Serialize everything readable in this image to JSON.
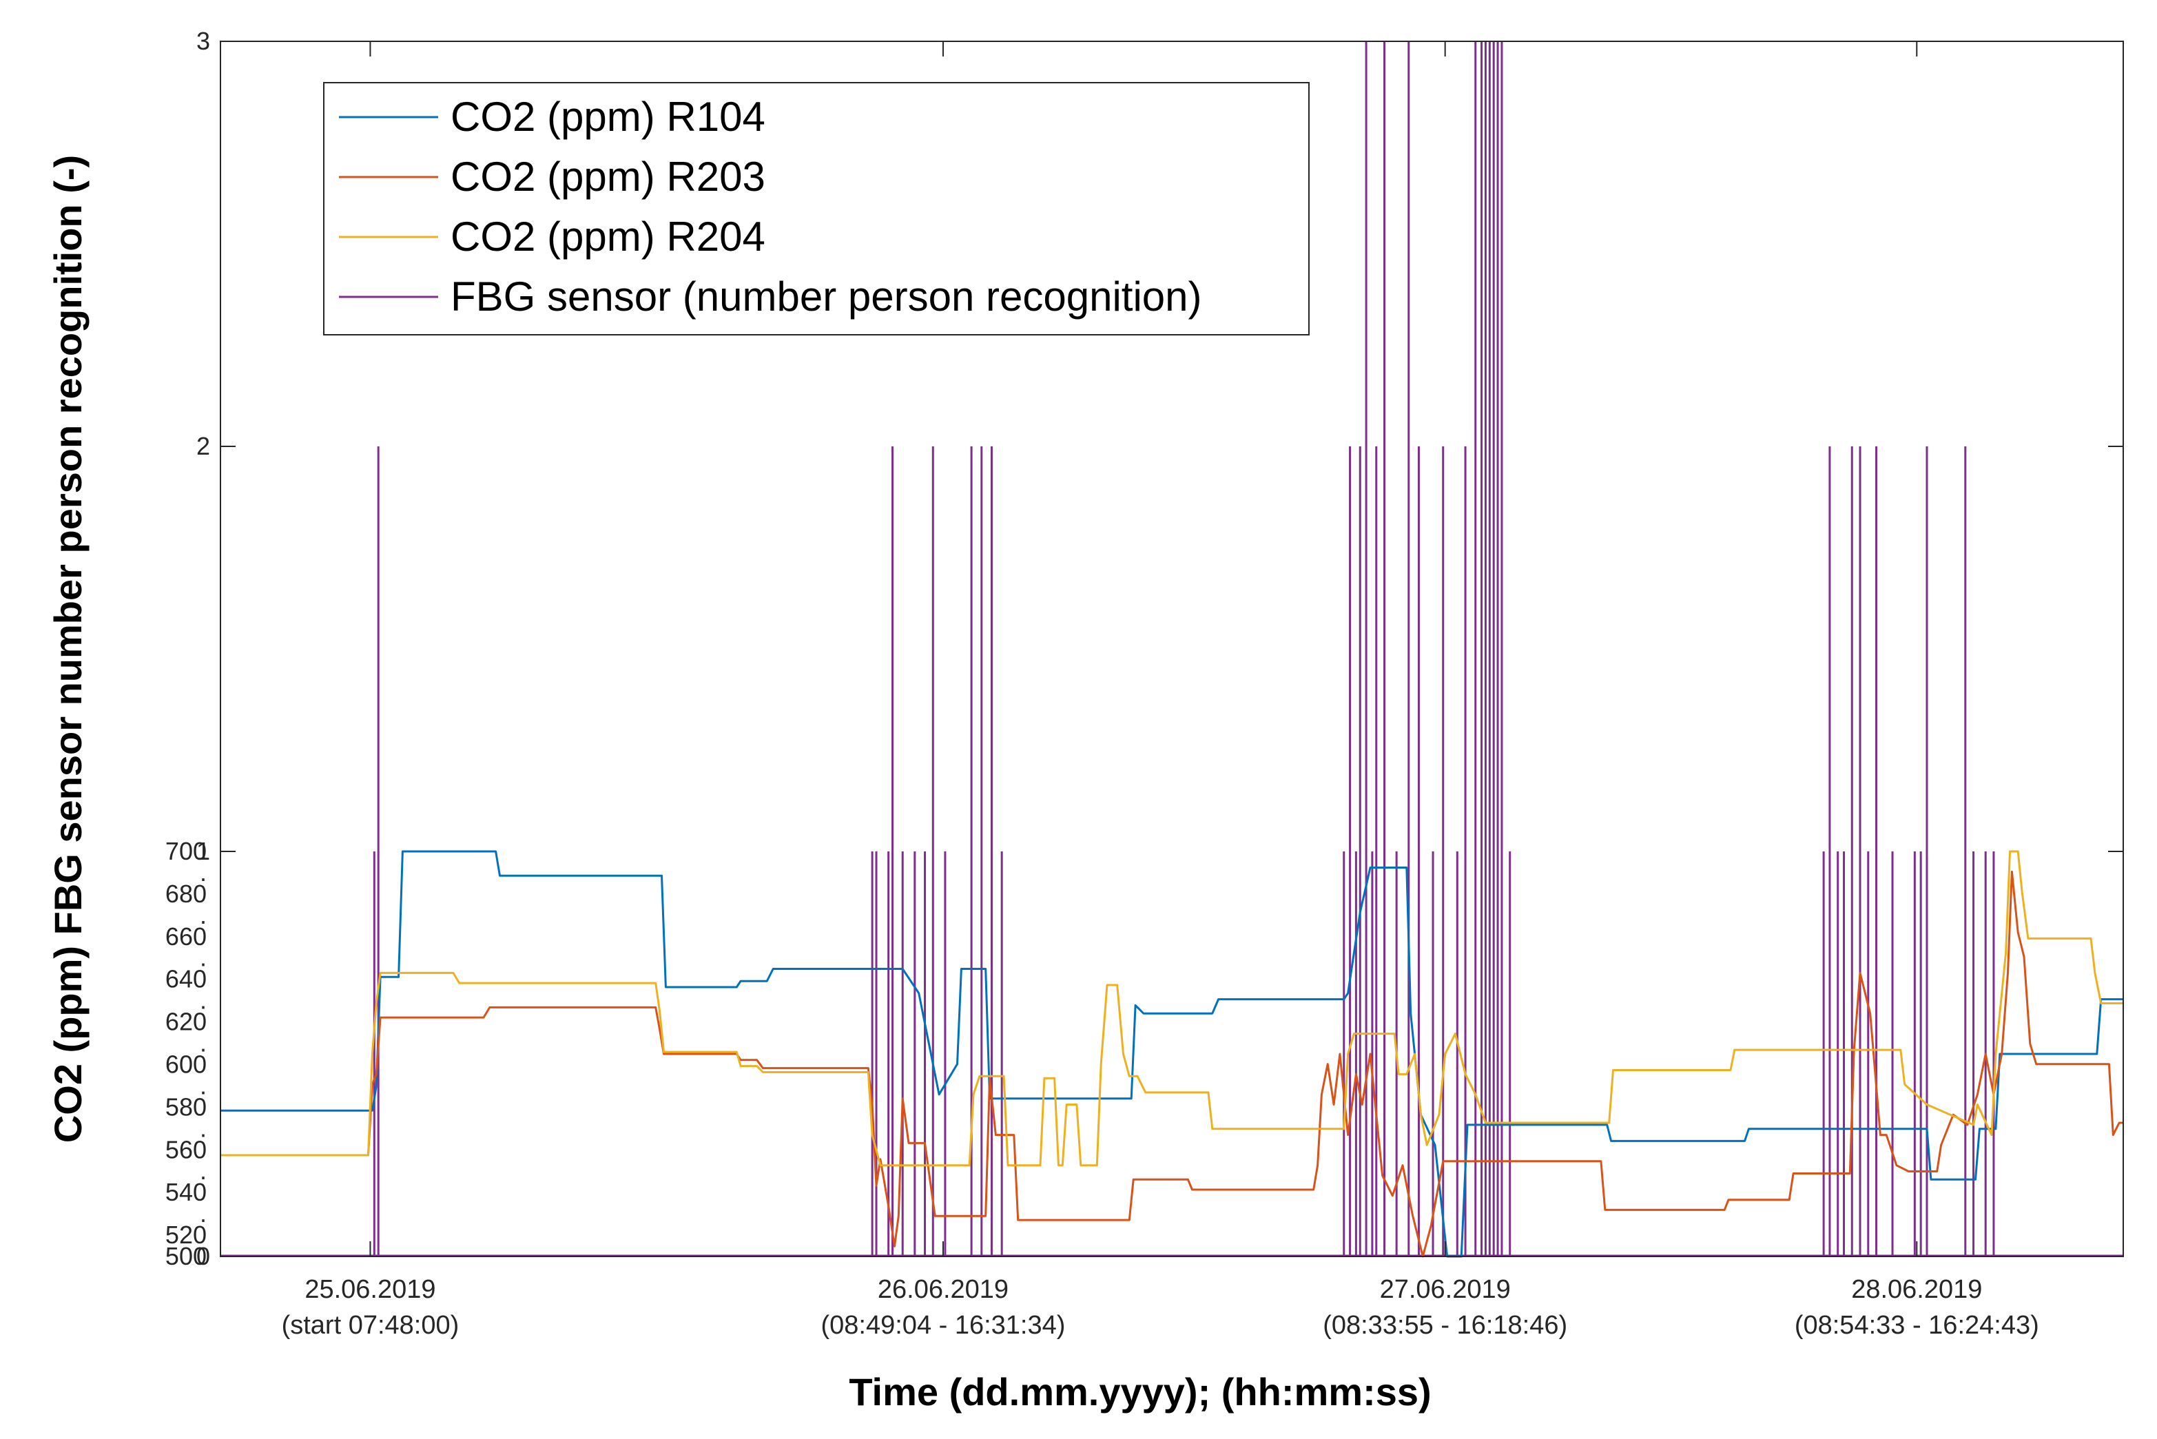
{
  "chart_data": {
    "type": "line",
    "title": "",
    "xlabel": "Time (dd.mm.yyyy); (hh:mm:ss)",
    "ylabel": "CO2 (ppm) FBG sensor number person recognition (-)",
    "x_unit": "hours since start (25.06.2019 07:48:00)",
    "xlim": [
      0,
      94
    ],
    "x_ticks": [
      {
        "x": 7.4,
        "line1": "25.06.2019",
        "line2": "(start 07:48:00)"
      },
      {
        "x": 35.7,
        "line1": "26.06.2019",
        "line2": "(08:49:04 - 16:31:34)"
      },
      {
        "x": 60.5,
        "line1": "27.06.2019",
        "line2": "(08:33:55 - 16:18:46)"
      },
      {
        "x": 83.8,
        "line1": "28.06.2019",
        "line2": "(08:54:33 - 16:24:43)"
      }
    ],
    "y_left_ticks": [
      "500",
      "520",
      ".",
      "540",
      ".",
      "560",
      ".",
      "580",
      ".",
      "600",
      ".",
      "620",
      ".",
      "640",
      ".",
      "660",
      ".",
      "680",
      ".",
      "700"
    ],
    "y_right_ticks": [
      "0",
      "1",
      "2",
      "3"
    ],
    "co2_range": [
      500,
      700
    ],
    "ylim_persons": [
      0,
      3
    ],
    "grid": false,
    "legend_position": "top-left",
    "series": [
      {
        "name": "CO2 (ppm) R104",
        "color": "#0072BD",
        "axis": "co2",
        "points": [
          [
            0,
            572
          ],
          [
            7.5,
            572
          ],
          [
            7.7,
            584
          ],
          [
            7.9,
            638
          ],
          [
            8.8,
            638
          ],
          [
            9.0,
            700
          ],
          [
            13.6,
            700
          ],
          [
            13.8,
            688
          ],
          [
            21.8,
            688
          ],
          [
            22.0,
            633
          ],
          [
            25.5,
            633
          ],
          [
            25.7,
            636
          ],
          [
            27.0,
            636
          ],
          [
            27.3,
            642
          ],
          [
            33.5,
            642
          ],
          [
            33.7,
            642
          ],
          [
            34.5,
            630
          ],
          [
            35.5,
            580
          ],
          [
            36.4,
            595
          ],
          [
            36.6,
            642
          ],
          [
            37.8,
            642
          ],
          [
            38.0,
            578
          ],
          [
            45.0,
            578
          ],
          [
            45.2,
            624
          ],
          [
            45.6,
            620
          ],
          [
            49.0,
            620
          ],
          [
            49.3,
            627
          ],
          [
            55.5,
            627
          ],
          [
            55.7,
            630
          ],
          [
            56.3,
            670
          ],
          [
            56.8,
            692
          ],
          [
            58.6,
            692
          ],
          [
            58.8,
            620
          ],
          [
            59.3,
            570
          ],
          [
            60.0,
            555
          ],
          [
            60.6,
            500
          ],
          [
            61.3,
            500
          ],
          [
            61.6,
            565
          ],
          [
            68.5,
            565
          ],
          [
            68.7,
            557
          ],
          [
            75.3,
            557
          ],
          [
            75.5,
            563
          ],
          [
            79.5,
            563
          ],
          [
            82.5,
            563
          ],
          [
            82.7,
            563
          ],
          [
            84.3,
            563
          ],
          [
            84.5,
            538
          ],
          [
            86.7,
            538
          ],
          [
            86.9,
            563
          ],
          [
            87.7,
            563
          ],
          [
            87.9,
            600
          ],
          [
            92.7,
            600
          ],
          [
            92.9,
            627
          ],
          [
            94,
            627
          ]
        ]
      },
      {
        "name": "CO2 (ppm) R203",
        "color": "#D95319",
        "axis": "co2",
        "points": [
          [
            0,
            550
          ],
          [
            7.3,
            550
          ],
          [
            7.5,
            585
          ],
          [
            7.7,
            590
          ],
          [
            7.9,
            618
          ],
          [
            8.2,
            618
          ],
          [
            13.0,
            618
          ],
          [
            13.3,
            623
          ],
          [
            21.5,
            623
          ],
          [
            21.7,
            612
          ],
          [
            21.9,
            600
          ],
          [
            25.5,
            600
          ],
          [
            25.7,
            597
          ],
          [
            26.5,
            597
          ],
          [
            26.8,
            593
          ],
          [
            32.0,
            593
          ],
          [
            32.2,
            575
          ],
          [
            32.4,
            535
          ],
          [
            32.6,
            548
          ],
          [
            33.0,
            525
          ],
          [
            33.3,
            505
          ],
          [
            33.5,
            520
          ],
          [
            33.7,
            578
          ],
          [
            34.0,
            556
          ],
          [
            34.8,
            556
          ],
          [
            35.3,
            520
          ],
          [
            36.1,
            520
          ],
          [
            37.0,
            520
          ],
          [
            37.5,
            520
          ],
          [
            37.8,
            520
          ],
          [
            38.0,
            588
          ],
          [
            38.3,
            560
          ],
          [
            39.2,
            560
          ],
          [
            39.4,
            518
          ],
          [
            44.9,
            518
          ],
          [
            45.1,
            538
          ],
          [
            47.8,
            538
          ],
          [
            48.0,
            533
          ],
          [
            54.0,
            533
          ],
          [
            54.2,
            545
          ],
          [
            54.4,
            580
          ],
          [
            54.7,
            595
          ],
          [
            55.0,
            575
          ],
          [
            55.3,
            600
          ],
          [
            55.7,
            560
          ],
          [
            56.1,
            590
          ],
          [
            56.4,
            575
          ],
          [
            56.8,
            600
          ],
          [
            57.4,
            540
          ],
          [
            57.9,
            530
          ],
          [
            58.4,
            545
          ],
          [
            58.9,
            520
          ],
          [
            59.4,
            500
          ],
          [
            59.8,
            515
          ],
          [
            60.4,
            547
          ],
          [
            62.3,
            547
          ],
          [
            62.5,
            547
          ],
          [
            68.2,
            547
          ],
          [
            68.4,
            523
          ],
          [
            74.3,
            523
          ],
          [
            74.5,
            528
          ],
          [
            77.5,
            528
          ],
          [
            77.7,
            541
          ],
          [
            80.5,
            541
          ],
          [
            80.7,
            602
          ],
          [
            81.0,
            640
          ],
          [
            81.5,
            620
          ],
          [
            82.0,
            560
          ],
          [
            82.3,
            560
          ],
          [
            82.8,
            545
          ],
          [
            83.4,
            542
          ],
          [
            84.8,
            542
          ],
          [
            85.0,
            555
          ],
          [
            85.6,
            570
          ],
          [
            86.3,
            565
          ],
          [
            86.8,
            580
          ],
          [
            87.2,
            600
          ],
          [
            87.6,
            580
          ],
          [
            88.0,
            600
          ],
          [
            88.3,
            640
          ],
          [
            88.5,
            690
          ],
          [
            88.8,
            660
          ],
          [
            89.1,
            648
          ],
          [
            89.4,
            605
          ],
          [
            89.7,
            595
          ],
          [
            93.3,
            595
          ],
          [
            93.5,
            560
          ],
          [
            93.8,
            566
          ],
          [
            94,
            566
          ]
        ]
      },
      {
        "name": "CO2 (ppm) R204",
        "color": "#EDB120",
        "axis": "co2",
        "points": [
          [
            0,
            550
          ],
          [
            7.3,
            550
          ],
          [
            7.5,
            600
          ],
          [
            7.7,
            625
          ],
          [
            7.9,
            640
          ],
          [
            8.2,
            640
          ],
          [
            11.5,
            640
          ],
          [
            11.8,
            635
          ],
          [
            21.5,
            635
          ],
          [
            21.7,
            621
          ],
          [
            21.9,
            601
          ],
          [
            25.5,
            601
          ],
          [
            25.7,
            594
          ],
          [
            26.5,
            594
          ],
          [
            26.8,
            591
          ],
          [
            32.0,
            591
          ],
          [
            32.2,
            560
          ],
          [
            32.6,
            545
          ],
          [
            33.2,
            545
          ],
          [
            37.0,
            545
          ],
          [
            37.2,
            580
          ],
          [
            37.5,
            589
          ],
          [
            38.7,
            589
          ],
          [
            38.9,
            545
          ],
          [
            40.5,
            545
          ],
          [
            40.7,
            588
          ],
          [
            41.2,
            588
          ],
          [
            41.4,
            545
          ],
          [
            41.6,
            545
          ],
          [
            41.8,
            575
          ],
          [
            42.3,
            575
          ],
          [
            42.5,
            545
          ],
          [
            43.3,
            545
          ],
          [
            43.5,
            595
          ],
          [
            43.8,
            634
          ],
          [
            44.3,
            634
          ],
          [
            44.6,
            600
          ],
          [
            44.9,
            589
          ],
          [
            45.3,
            589
          ],
          [
            45.7,
            581
          ],
          [
            48.8,
            581
          ],
          [
            49.0,
            563
          ],
          [
            55.5,
            563
          ],
          [
            55.7,
            600
          ],
          [
            56.0,
            610
          ],
          [
            58.0,
            610
          ],
          [
            58.2,
            590
          ],
          [
            58.6,
            590
          ],
          [
            59.0,
            600
          ],
          [
            59.3,
            570
          ],
          [
            59.6,
            555
          ],
          [
            60.2,
            570
          ],
          [
            60.5,
            600
          ],
          [
            61.0,
            610
          ],
          [
            61.5,
            590
          ],
          [
            62.0,
            580
          ],
          [
            62.5,
            566
          ],
          [
            62.8,
            566
          ],
          [
            68.6,
            566
          ],
          [
            68.8,
            592
          ],
          [
            74.6,
            592
          ],
          [
            74.8,
            602
          ],
          [
            83.0,
            602
          ],
          [
            83.2,
            585
          ],
          [
            84.3,
            575
          ],
          [
            86.6,
            565
          ],
          [
            86.8,
            575
          ],
          [
            87.5,
            560
          ],
          [
            87.7,
            600
          ],
          [
            88.2,
            650
          ],
          [
            88.4,
            700
          ],
          [
            88.8,
            700
          ],
          [
            89.0,
            680
          ],
          [
            89.3,
            657
          ],
          [
            92.4,
            657
          ],
          [
            92.6,
            640
          ],
          [
            92.9,
            625
          ],
          [
            94,
            625
          ]
        ]
      },
      {
        "name": "FBG sensor (number person recognition)",
        "color": "#7E2F8E",
        "axis": "persons",
        "spikes": [
          [
            7.6,
            1
          ],
          [
            7.8,
            2
          ],
          [
            32.2,
            1
          ],
          [
            32.4,
            1
          ],
          [
            33.0,
            1
          ],
          [
            33.2,
            2
          ],
          [
            33.7,
            1
          ],
          [
            34.3,
            1
          ],
          [
            34.8,
            1
          ],
          [
            35.2,
            2
          ],
          [
            35.8,
            1
          ],
          [
            37.1,
            2
          ],
          [
            37.6,
            2
          ],
          [
            38.1,
            2
          ],
          [
            38.6,
            1
          ],
          [
            55.5,
            1
          ],
          [
            55.8,
            2
          ],
          [
            56.1,
            1
          ],
          [
            56.3,
            2
          ],
          [
            56.6,
            3
          ],
          [
            56.9,
            1
          ],
          [
            57.1,
            2
          ],
          [
            57.5,
            3
          ],
          [
            58.1,
            1
          ],
          [
            58.7,
            3
          ],
          [
            59.2,
            2
          ],
          [
            59.9,
            1
          ],
          [
            60.4,
            2
          ],
          [
            61.1,
            1
          ],
          [
            61.5,
            2
          ],
          [
            62.0,
            3
          ],
          [
            62.3,
            3
          ],
          [
            62.5,
            3
          ],
          [
            62.7,
            3
          ],
          [
            62.9,
            3
          ],
          [
            63.1,
            3
          ],
          [
            63.3,
            3
          ],
          [
            63.7,
            1
          ],
          [
            79.2,
            1
          ],
          [
            79.5,
            2
          ],
          [
            79.9,
            1
          ],
          [
            80.2,
            1
          ],
          [
            80.6,
            2
          ],
          [
            81.0,
            2
          ],
          [
            81.4,
            1
          ],
          [
            81.8,
            2
          ],
          [
            82.6,
            1
          ],
          [
            83.7,
            1
          ],
          [
            84.0,
            1
          ],
          [
            84.3,
            2
          ],
          [
            86.2,
            2
          ],
          [
            86.6,
            1
          ],
          [
            87.2,
            1
          ],
          [
            87.6,
            1
          ]
        ]
      }
    ]
  }
}
